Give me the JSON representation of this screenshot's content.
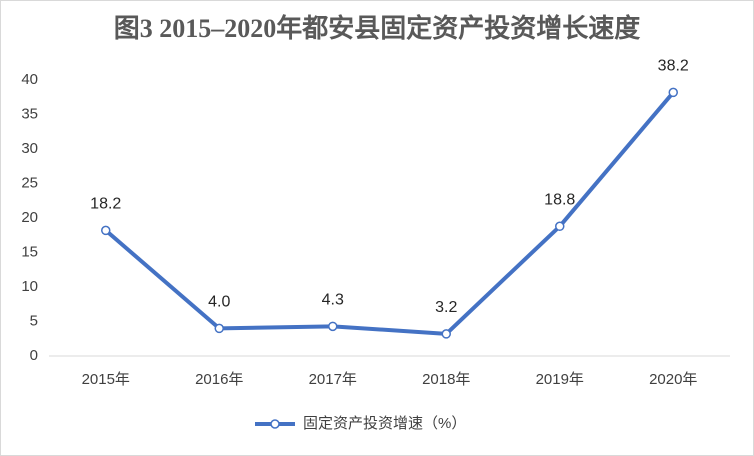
{
  "chart_data": {
    "type": "line",
    "title": "图3  2015–2020年都安县固定资产投资增长速度",
    "categories": [
      "2015年",
      "2016年",
      "2017年",
      "2018年",
      "2019年",
      "2020年"
    ],
    "series": [
      {
        "name": "固定资产投资增速（%）",
        "color": "#4472c4",
        "values": [
          18.2,
          4.0,
          4.3,
          3.2,
          18.8,
          38.2
        ],
        "value_labels": [
          "18.2",
          "4.0",
          "4.3",
          "3.2",
          "18.8",
          "38.2"
        ]
      }
    ],
    "ylim": [
      0,
      40
    ],
    "yticks": [
      0,
      5,
      10,
      15,
      20,
      25,
      30,
      35,
      40
    ],
    "grid": false,
    "legend": "bottom"
  }
}
